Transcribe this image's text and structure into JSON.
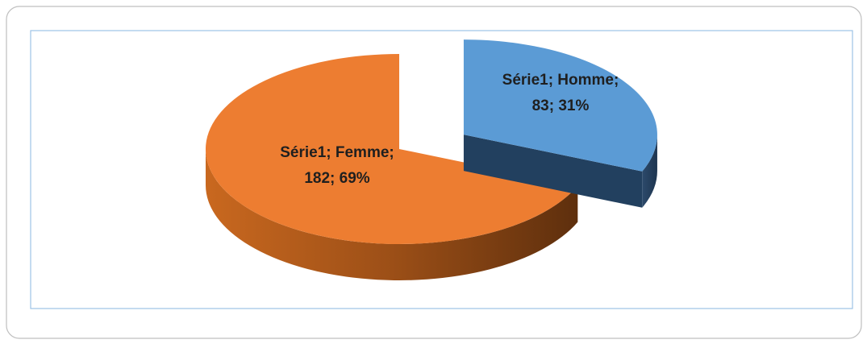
{
  "chart_data": {
    "type": "pie3d",
    "series_name": "Série1",
    "categories": [
      "Homme",
      "Femme"
    ],
    "values": [
      83,
      182
    ],
    "value_labels": [
      [
        "Série1; Homme;",
        "83; 31%"
      ],
      [
        "Série1; Femme;",
        "182; 69%"
      ]
    ],
    "colors": [
      "#5b9bd5",
      "#ed7d31"
    ],
    "exploded": [
      true,
      false
    ]
  }
}
